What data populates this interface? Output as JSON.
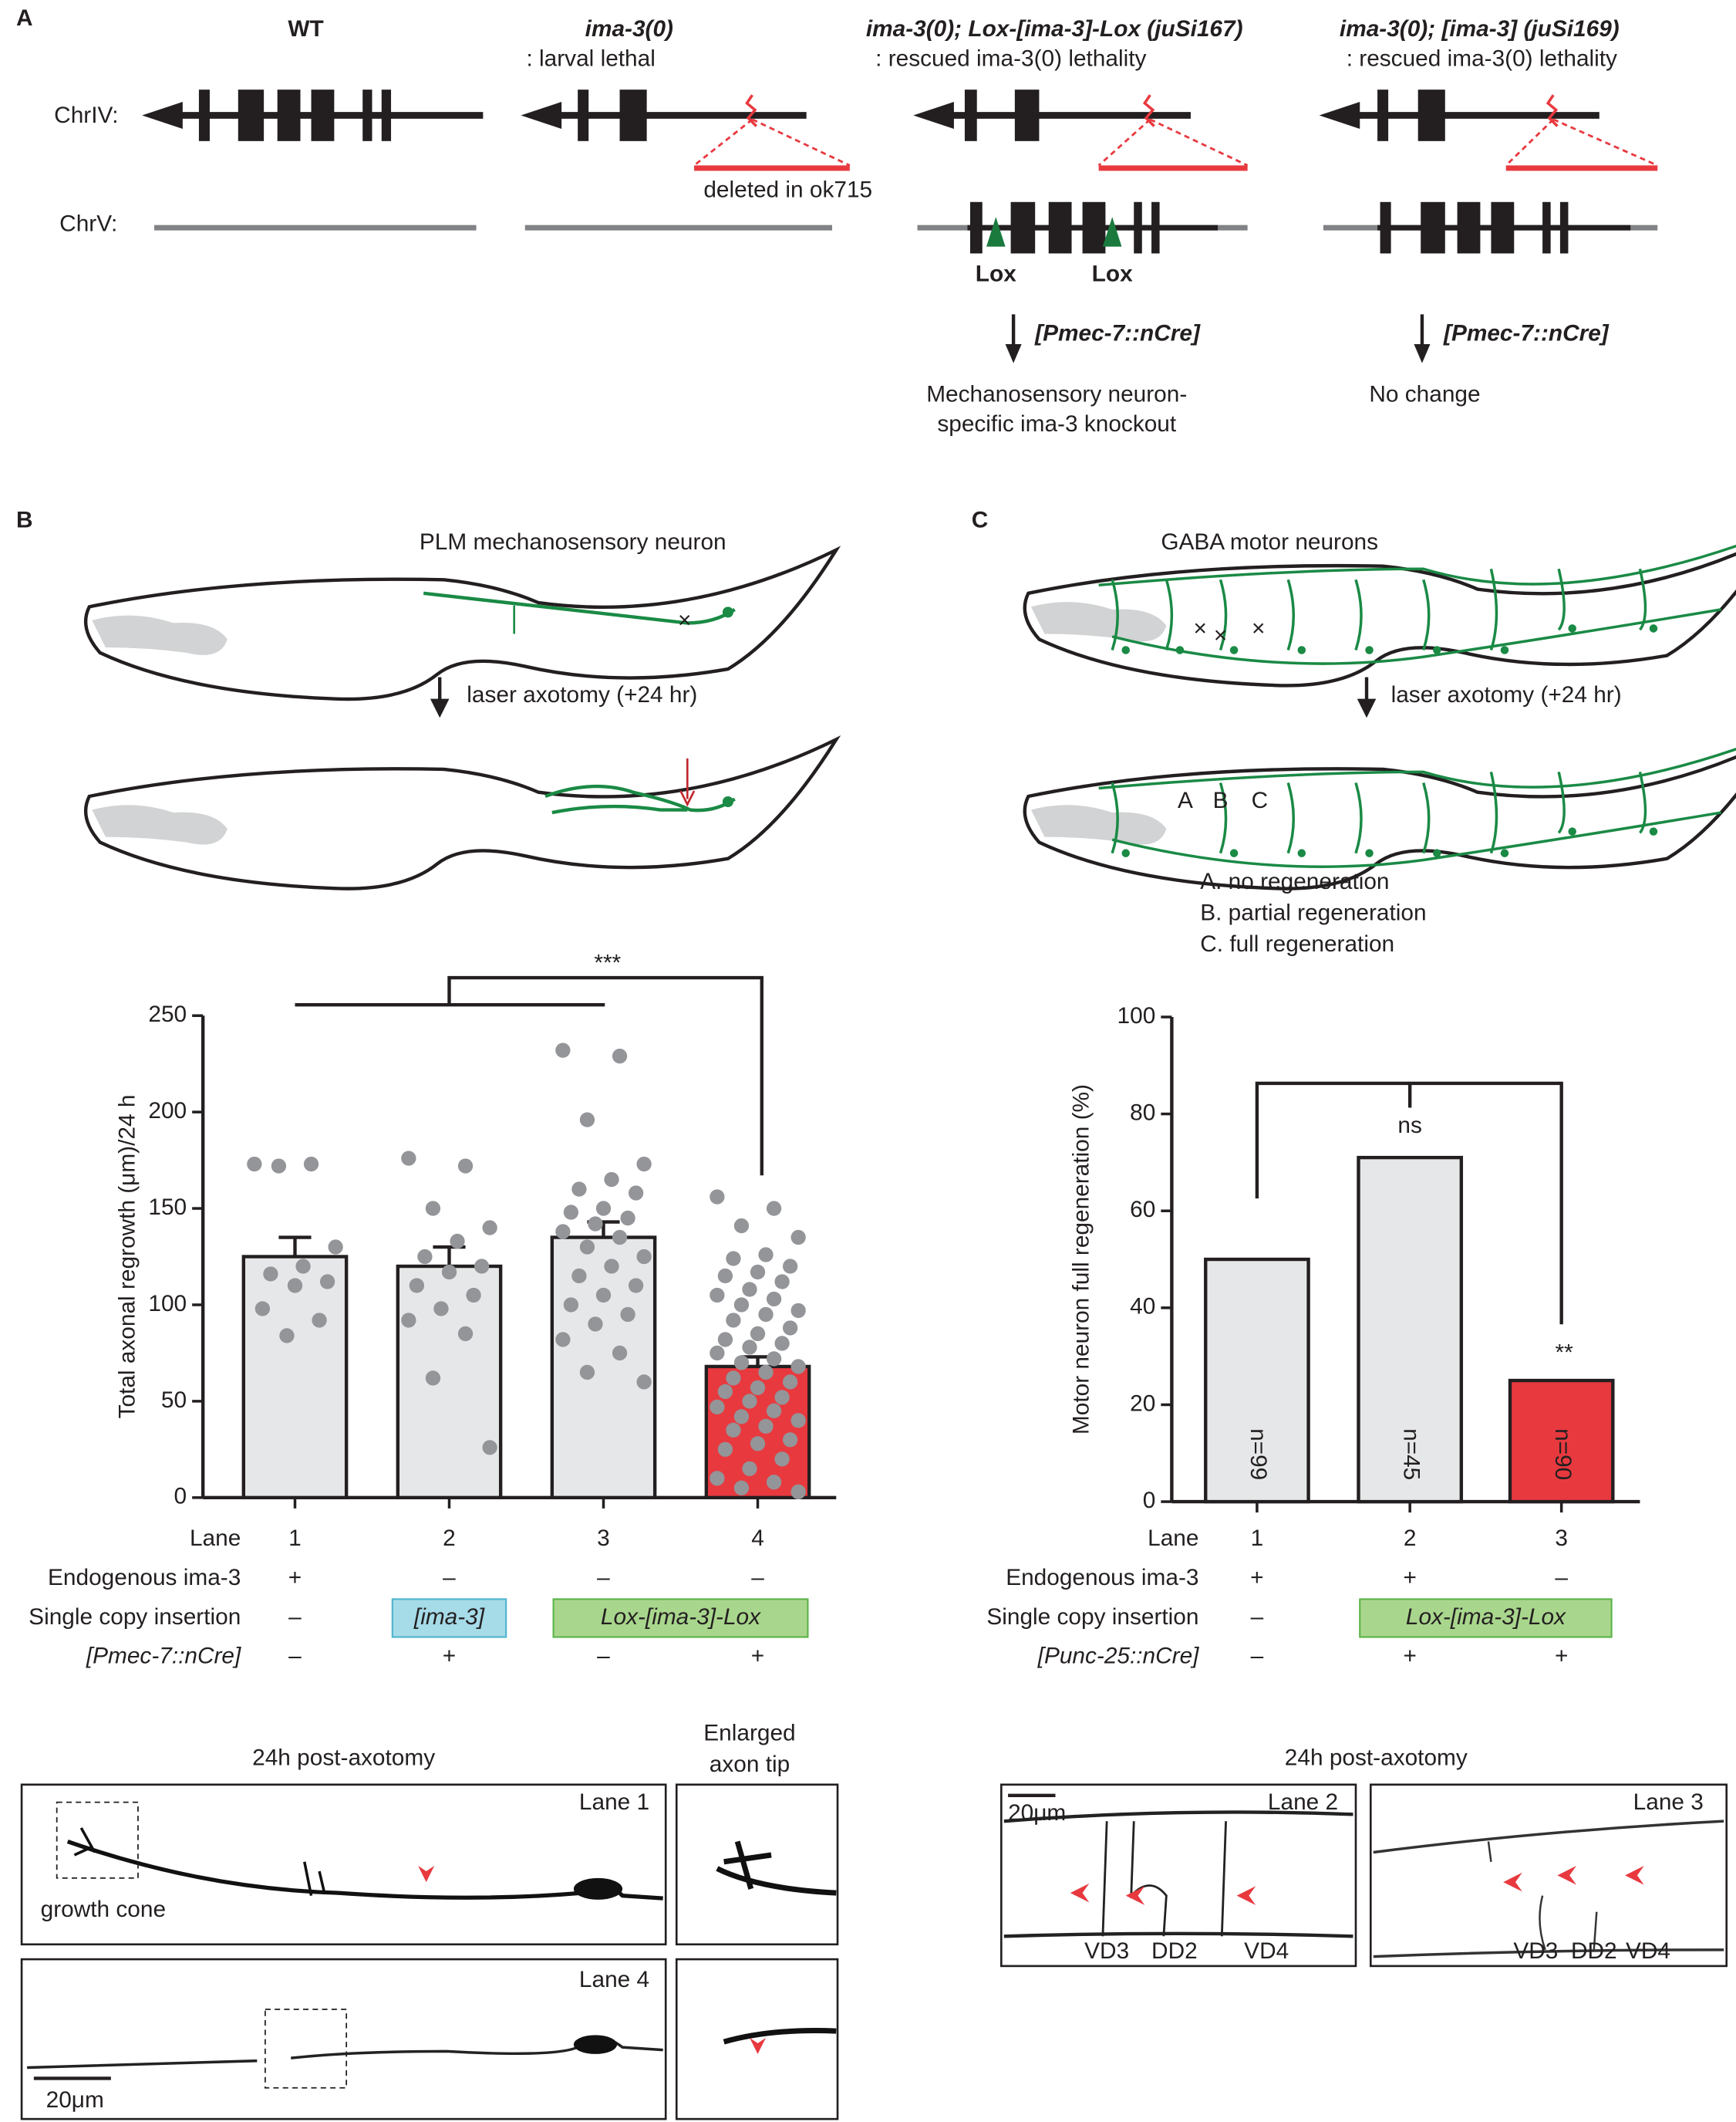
{
  "panel_a": {
    "label": "A",
    "chromosomes": [
      "ChrIV:",
      "ChrV:"
    ],
    "columns": [
      {
        "title": "WT"
      },
      {
        "title": "ima-3(0)",
        "subtitle": ": larval lethal",
        "deletion": "deleted in ok715"
      },
      {
        "title": "ima-3(0); Lox-[ima-3]-Lox (juSi167)",
        "subtitle": ": rescued ima-3(0) lethality",
        "lox": [
          "Lox",
          "Lox"
        ],
        "cre": "[Pmec-7::nCre]",
        "outcome": [
          "Mechanosensory neuron-",
          "specific ima-3 knockout"
        ]
      },
      {
        "title": "ima-3(0); [ima-3] (juSi169)",
        "subtitle": ": rescued ima-3(0) lethality",
        "cre": "[Pmec-7::nCre]",
        "outcome": [
          "No change"
        ]
      }
    ]
  },
  "panel_b": {
    "label": "B",
    "neuron": "PLM mechanosensory neuron",
    "procedure": "laser axotomy (+24 hr)",
    "significance": "***",
    "table": {
      "lane_label": "Lane",
      "rows": [
        {
          "label": "Endogenous ima-3",
          "cells": [
            {
              "text": "+"
            },
            {
              "text": "–"
            },
            {
              "text": "–"
            },
            {
              "text": "–"
            }
          ]
        },
        {
          "label": "Single copy insertion",
          "cells": [
            {
              "text": "–"
            },
            {
              "text": "[ima-3]",
              "color": "#a6dbe8"
            },
            {
              "text": "Lox-[ima-3]-Lox",
              "color": "#a9d68d"
            }
          ]
        },
        {
          "label": "[Pmec-7::nCre]",
          "cells": [
            {
              "text": "–"
            },
            {
              "text": "+"
            },
            {
              "text": "–"
            },
            {
              "text": "+"
            }
          ]
        }
      ]
    }
  },
  "panel_c": {
    "label": "C",
    "neuron": "GABA motor neurons",
    "procedure": "laser axotomy (+24 hr)",
    "cut_labels": [
      "A",
      "B",
      "C"
    ],
    "legend": [
      "A. no regeneration",
      "B. partial regeneration",
      "C. full regeneration"
    ],
    "significance": [
      "ns",
      "**"
    ],
    "table": {
      "lane_label": "Lane",
      "rows": [
        {
          "label": "Endogenous ima-3",
          "cells": [
            {
              "text": "+"
            },
            {
              "text": "+"
            },
            {
              "text": "–"
            }
          ]
        },
        {
          "label": "Single copy insertion",
          "cells": [
            {
              "text": "–"
            },
            {
              "text": "Lox-[ima-3]-Lox",
              "color": "#a9d68d"
            }
          ]
        },
        {
          "label": "[Punc-25::nCre]",
          "cells": [
            {
              "text": "–"
            },
            {
              "text": "+"
            },
            {
              "text": "+"
            }
          ]
        }
      ]
    }
  },
  "chart_data": [
    {
      "type": "bar",
      "ylabel": "Total axonal regrowth (μm)/24 h",
      "categories": [
        "1",
        "2",
        "3",
        "4"
      ],
      "values": [
        125,
        120,
        135,
        68
      ],
      "errors": [
        10,
        10,
        8,
        5
      ],
      "colors": [
        "#e6e7e8",
        "#e6e7e8",
        "#e6e7e8",
        "#e8393f"
      ],
      "point_color": "#939598",
      "points": [
        [
          173,
          173,
          172,
          130,
          120,
          116,
          112,
          110,
          98,
          92,
          84
        ],
        [
          176,
          172,
          150,
          140,
          133,
          125,
          120,
          117,
          110,
          105,
          98,
          92,
          85,
          62,
          26
        ],
        [
          232,
          229,
          196,
          173,
          165,
          160,
          158,
          150,
          148,
          145,
          142,
          138,
          135,
          130,
          125,
          120,
          115,
          110,
          105,
          100,
          95,
          90,
          82,
          75,
          65,
          60
        ],
        [
          156,
          150,
          141,
          135,
          126,
          124,
          120,
          117,
          115,
          112,
          108,
          105,
          103,
          100,
          97,
          95,
          92,
          88,
          85,
          82,
          80,
          78,
          75,
          72,
          70,
          68,
          65,
          62,
          60,
          57,
          55,
          52,
          50,
          47,
          45,
          42,
          40,
          37,
          35,
          30,
          28,
          25,
          20,
          15,
          10,
          8,
          5,
          3
        ]
      ],
      "ylim": [
        0,
        250
      ],
      "yticks": [
        0,
        50,
        100,
        150,
        200,
        250
      ]
    },
    {
      "type": "bar",
      "ylabel": "Motor neuron full regeneration (%)",
      "categories": [
        "1",
        "2",
        "3"
      ],
      "values": [
        50,
        71,
        25
      ],
      "n_labels": [
        "n=99",
        "n=45",
        "n=90"
      ],
      "colors": [
        "#e6e7e8",
        "#e6e7e8",
        "#e8393f"
      ],
      "ylim": [
        0,
        100
      ],
      "yticks": [
        0,
        20,
        40,
        60,
        80,
        100
      ]
    }
  ],
  "micrographs": {
    "left_title": "24h post-axotomy",
    "tip_title": [
      "Enlarged",
      "axon tip"
    ],
    "lane_top": "Lane 1",
    "growth_cone": "growth cone",
    "lane_bottom": "Lane 4",
    "scale_left": "20μm",
    "right_title": "24h post-axotomy",
    "lane_right_a": "Lane 2",
    "lane_right_b": "Lane 3",
    "scale_right": "20μm",
    "neurons_a": [
      "VD3",
      "DD2",
      "VD4"
    ],
    "neurons_b": [
      "VD3",
      "DD2",
      "VD4"
    ]
  }
}
